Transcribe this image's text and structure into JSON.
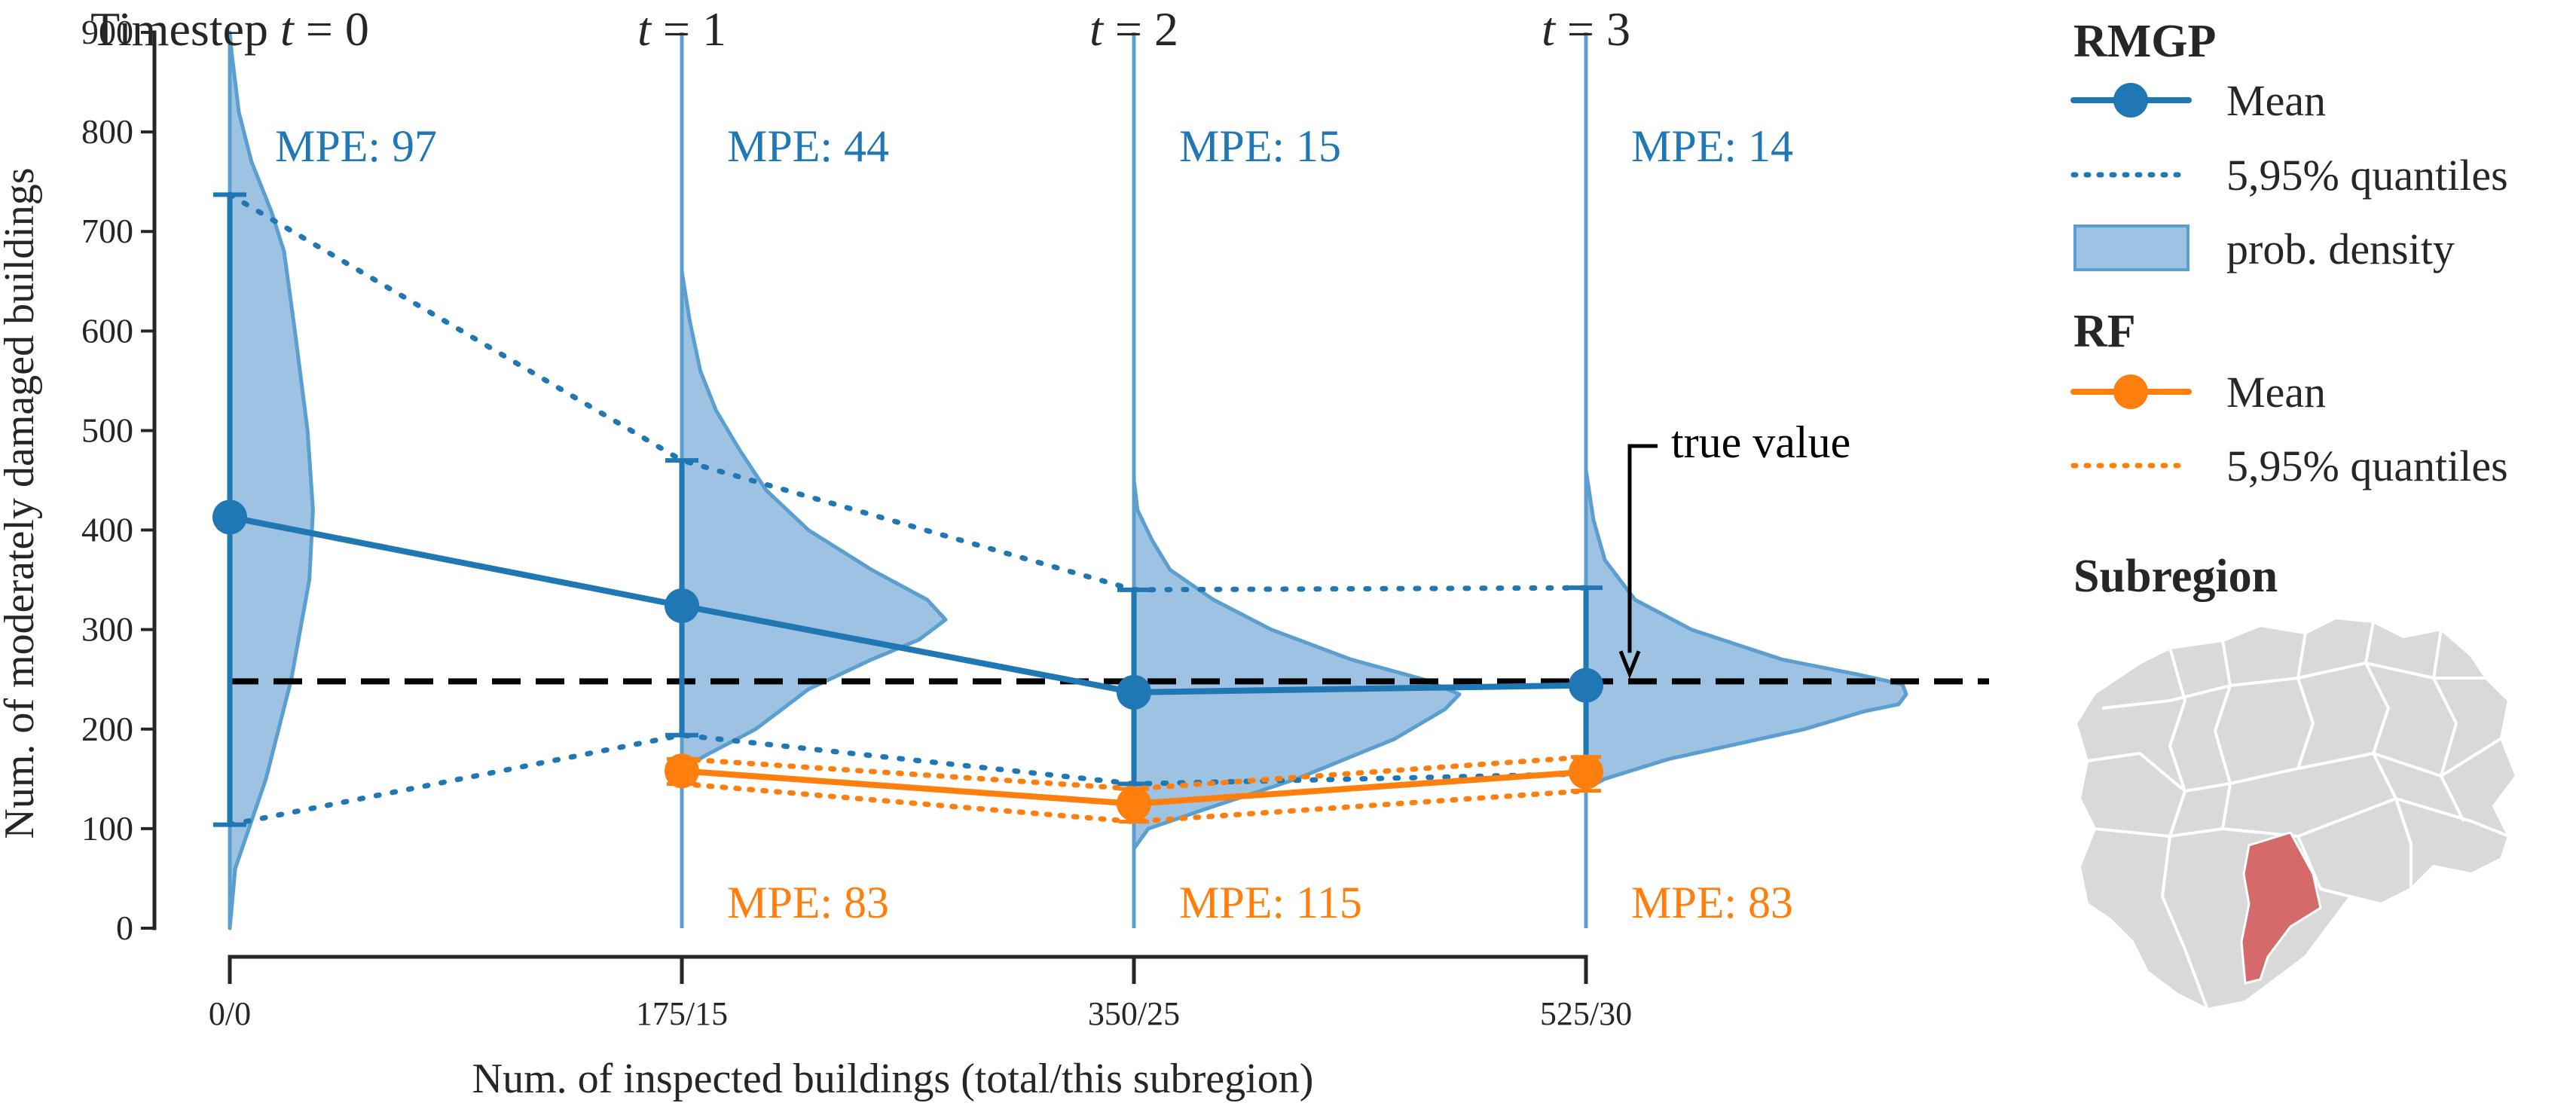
{
  "chart_data": {
    "type": "line",
    "title": "",
    "xlabel": "Num. of inspected buildings (total/this subregion)",
    "ylabel": "Num. of moderately damaged buildings",
    "ylim": [
      0,
      900
    ],
    "yticks": [
      0,
      100,
      200,
      300,
      400,
      500,
      600,
      700,
      800,
      900
    ],
    "categories": [
      "0/0",
      "175/15",
      "350/25",
      "525/30"
    ],
    "timestep_labels": [
      {
        "prefix": "Timestep ",
        "var": "t",
        "eq": " = ",
        "num": "0"
      },
      {
        "prefix": "",
        "var": "t",
        "eq": " = ",
        "num": "1"
      },
      {
        "prefix": "",
        "var": "t",
        "eq": " = ",
        "num": "2"
      },
      {
        "prefix": "",
        "var": "t",
        "eq": " = ",
        "num": "3"
      }
    ],
    "true_value": 248,
    "true_value_label": "true value",
    "series": [
      {
        "name": "RMGP",
        "color": "#1f77b4",
        "mean": [
          413,
          324,
          237,
          244
        ],
        "q05": [
          104,
          194,
          145,
          155
        ],
        "q95": [
          737,
          470,
          340,
          342
        ],
        "mpe_labels": [
          "MPE: 97",
          "MPE: 44",
          "MPE: 15",
          "MPE: 14"
        ],
        "density": [
          {
            "pts": [
              [
                0,
                0
              ],
              [
                60,
                0.03
              ],
              [
                150,
                0.2
              ],
              [
                250,
                0.34
              ],
              [
                350,
                0.44
              ],
              [
                420,
                0.46
              ],
              [
                500,
                0.43
              ],
              [
                600,
                0.36
              ],
              [
                680,
                0.3
              ],
              [
                720,
                0.23
              ],
              [
                770,
                0.12
              ],
              [
                820,
                0.05
              ],
              [
                880,
                0.01
              ],
              [
                900,
                0
              ]
            ]
          },
          {
            "pts": [
              [
                160,
                0
              ],
              [
                175,
                0.1
              ],
              [
                200,
                0.28
              ],
              [
                240,
                0.48
              ],
              [
                270,
                0.72
              ],
              [
                290,
                0.9
              ],
              [
                310,
                1.0
              ],
              [
                330,
                0.93
              ],
              [
                360,
                0.72
              ],
              [
                400,
                0.48
              ],
              [
                440,
                0.32
              ],
              [
                480,
                0.22
              ],
              [
                520,
                0.13
              ],
              [
                560,
                0.07
              ],
              [
                610,
                0.03
              ],
              [
                660,
                0
              ]
            ]
          },
          {
            "pts": [
              [
                80,
                0
              ],
              [
                100,
                0.04
              ],
              [
                120,
                0.2
              ],
              [
                150,
                0.45
              ],
              [
                190,
                0.72
              ],
              [
                220,
                0.86
              ],
              [
                235,
                0.9
              ],
              [
                250,
                0.8
              ],
              [
                270,
                0.6
              ],
              [
                300,
                0.38
              ],
              [
                330,
                0.22
              ],
              [
                360,
                0.1
              ],
              [
                390,
                0.05
              ],
              [
                420,
                0.01
              ],
              [
                450,
                0
              ]
            ]
          },
          {
            "pts": [
              [
                140,
                0
              ],
              [
                150,
                0.05
              ],
              [
                170,
                0.22
              ],
              [
                200,
                0.58
              ],
              [
                218,
                0.74
              ],
              [
                225,
                0.83
              ],
              [
                235,
                0.85
              ],
              [
                245,
                0.84
              ],
              [
                255,
                0.72
              ],
              [
                270,
                0.52
              ],
              [
                300,
                0.28
              ],
              [
                330,
                0.13
              ],
              [
                370,
                0.05
              ],
              [
                410,
                0.02
              ],
              [
                460,
                0
              ]
            ]
          }
        ]
      },
      {
        "name": "RF",
        "color": "#ff7f0e",
        "mean": [
          null,
          158,
          125,
          157
        ],
        "q05": [
          null,
          145,
          107,
          138
        ],
        "q95": [
          null,
          170,
          140,
          172
        ],
        "mpe_labels": [
          "",
          "MPE: 83",
          "MPE: 115",
          "MPE: 83"
        ]
      }
    ],
    "legend": {
      "rmgp_title": "RMGP",
      "rmgp_mean": "Mean",
      "rmgp_quantiles": "5,95% quantiles",
      "rmgp_density": "prob. density",
      "rf_title": "RF",
      "rf_mean": "Mean",
      "rf_quantiles": "5,95% quantiles",
      "subregion_title": "Subregion"
    },
    "colors": {
      "rmgp": "#1f77b4",
      "rmgp_fill": "#9ec2e2",
      "rmgp_edge": "#5b9fd0",
      "rf": "#ff7f0e",
      "subregion_map": "#d9d9d9",
      "subregion_highlight": "#d46a6a"
    }
  }
}
